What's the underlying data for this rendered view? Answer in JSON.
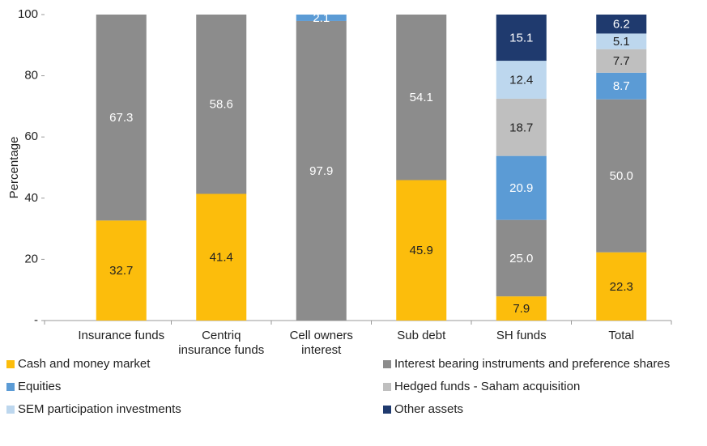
{
  "chart_data": {
    "type": "stacked_bar",
    "y_label": "Percentage",
    "categories": [
      "Insurance funds",
      "Centriq\ninsurance funds",
      "Cell owners\ninterest",
      "Sub debt",
      "SH funds",
      "Total"
    ],
    "series": [
      {
        "name": "Cash and money market",
        "color": "#fcbd0c",
        "values": [
          32.7,
          41.4,
          null,
          45.9,
          7.9,
          22.3
        ],
        "value_labels": [
          "32.7",
          "41.4",
          null,
          "45.9",
          "7.9",
          "22.3"
        ]
      },
      {
        "name": "Interest bearing instruments and preference shares",
        "color": "#8c8c8c",
        "values": [
          67.3,
          58.6,
          97.9,
          54.1,
          25,
          50
        ],
        "value_labels": [
          "67.3",
          "58.6",
          "97.9",
          "54.1",
          "25.0",
          "50.0"
        ]
      },
      {
        "name": "Equities",
        "color": "#5b9bd5",
        "values": [
          null,
          null,
          2.1,
          null,
          20.9,
          8.7
        ],
        "value_labels": [
          null,
          null,
          "2.1",
          null,
          "20.9",
          "8.7"
        ]
      },
      {
        "name": "Hedged funds - Saham acquisition",
        "color": "#bfbfbf",
        "values": [
          null,
          null,
          null,
          null,
          18.7,
          7.7
        ],
        "value_labels": [
          null,
          null,
          null,
          null,
          "18.7",
          "7.7"
        ]
      },
      {
        "name": "SEM participation investments",
        "color": "#bdd7ee",
        "values": [
          null,
          null,
          null,
          null,
          12.4,
          5.1
        ],
        "value_labels": [
          null,
          null,
          null,
          null,
          "12.4",
          "5.1"
        ]
      },
      {
        "name": "Other assets",
        "color": "#1f3a6e",
        "values": [
          null,
          null,
          null,
          null,
          15.1,
          6.2
        ],
        "value_labels": [
          null,
          null,
          null,
          null,
          "15.1",
          "6.2"
        ]
      }
    ],
    "ylim": [
      0,
      100
    ],
    "yticks": [
      {
        "value": 0,
        "label": "-"
      },
      20,
      40,
      60,
      80,
      100
    ]
  }
}
